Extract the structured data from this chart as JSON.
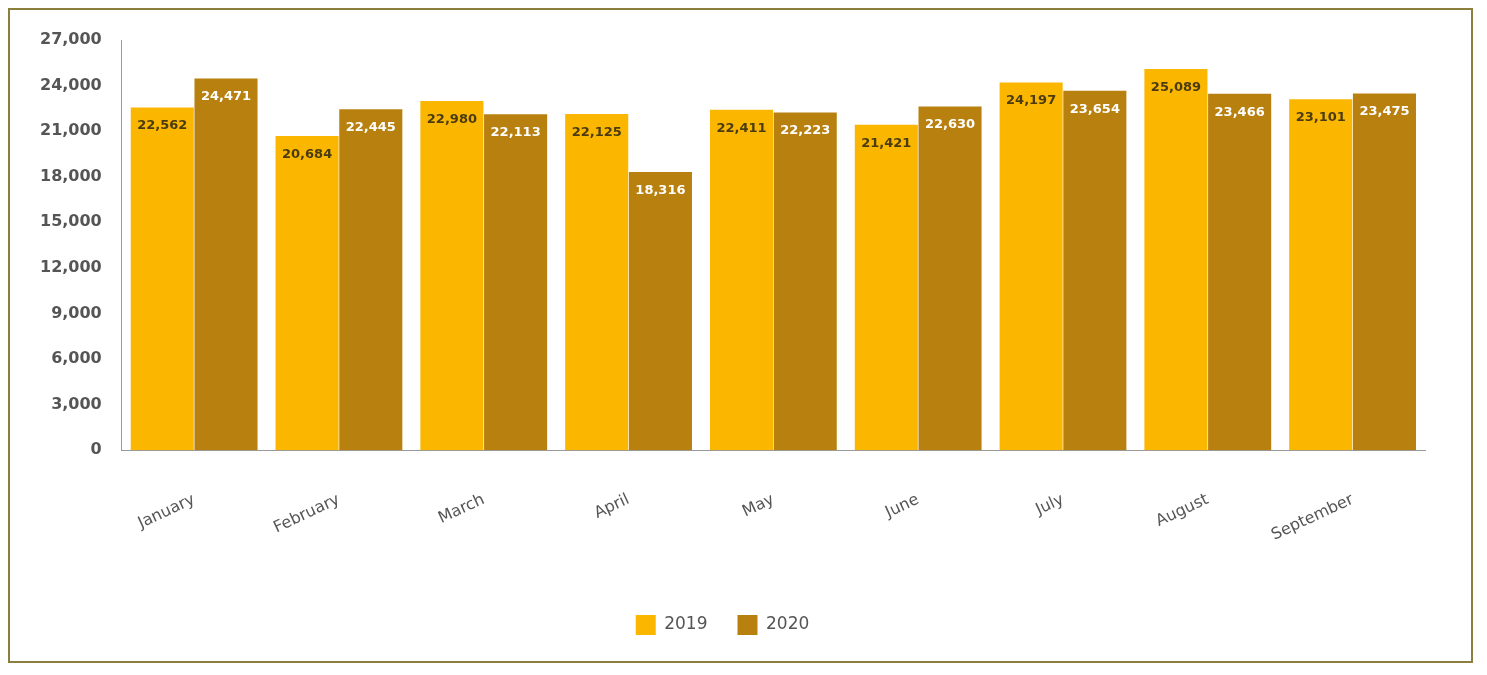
{
  "chart_data": {
    "type": "bar",
    "categories": [
      "January",
      "February",
      "March",
      "April",
      "May",
      "June",
      "July",
      "August",
      "September"
    ],
    "series": [
      {
        "name": "2019",
        "color": "#fbb600",
        "values": [
          22562,
          20684,
          22980,
          22125,
          22411,
          21421,
          24197,
          25089,
          23101
        ],
        "value_labels": [
          "22,562",
          "20,684",
          "22,980",
          "22,125",
          "22,411",
          "21,421",
          "24,197",
          "25,089",
          "23,101"
        ]
      },
      {
        "name": "2020",
        "color": "#b8800f",
        "values": [
          24471,
          22445,
          22113,
          18316,
          22223,
          22630,
          23654,
          23466,
          23475
        ],
        "value_labels": [
          "24,471",
          "22,445",
          "22,113",
          "18,316",
          "22,223",
          "22,630",
          "23,654",
          "23,466",
          "23,475"
        ]
      }
    ],
    "ylim": [
      0,
      27000
    ],
    "yticks": [
      0,
      {
        "value": 3000,
        "label": "3,000"
      },
      {
        "value": 6000,
        "label": "6,000"
      },
      {
        "value": 9000,
        "label": "9,000"
      },
      {
        "value": 12000,
        "label": "12,000"
      },
      {
        "value": 15000,
        "label": "15,000"
      },
      {
        "value": 18000,
        "label": "18,000"
      },
      {
        "value": 21000,
        "label": "21,000"
      },
      {
        "value": 24000,
        "label": "24,000"
      },
      {
        "value": 27000,
        "label": "27,000"
      }
    ],
    "legend": "bottom",
    "grid": false
  }
}
